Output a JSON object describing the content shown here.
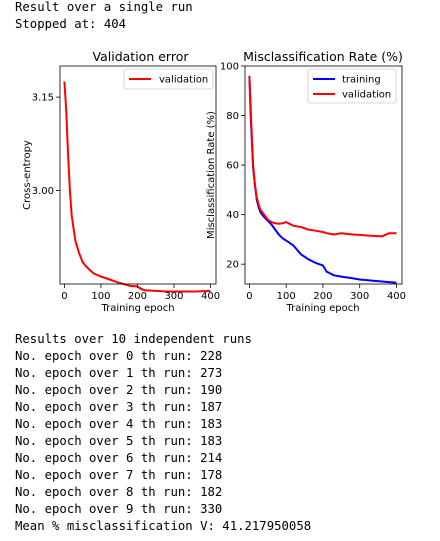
{
  "header": {
    "line1": "Result over a single run",
    "line2": "Stopped at: 404"
  },
  "chart_data": [
    {
      "type": "line",
      "title": "Validation error",
      "xlabel": "Training epoch",
      "ylabel": "Cross-entropy",
      "xlim": [
        -12,
        415
      ],
      "ylim": [
        2.85,
        3.2
      ],
      "xticks": [
        0,
        100,
        200,
        300,
        400
      ],
      "yticks": [
        3.0,
        3.15
      ],
      "ytick_labels": [
        "3.00",
        "3.15"
      ],
      "grid": false,
      "legend": "top-right",
      "series": [
        {
          "name": "validation",
          "color": "#ff0000",
          "x": [
            0,
            5,
            10,
            15,
            20,
            30,
            40,
            50,
            60,
            70,
            80,
            100,
            120,
            150,
            180,
            200,
            210,
            220,
            250,
            280,
            300,
            330,
            360,
            400
          ],
          "y": [
            3.175,
            3.13,
            3.06,
            3.0,
            2.96,
            2.92,
            2.9,
            2.885,
            2.878,
            2.872,
            2.867,
            2.862,
            2.858,
            2.852,
            2.847,
            2.846,
            2.842,
            2.84,
            2.839,
            2.838,
            2.838,
            2.838,
            2.838,
            2.839
          ]
        }
      ]
    },
    {
      "type": "line",
      "title": "Misclassification Rate (%)",
      "xlabel": "Training epoch",
      "ylabel": "Misclassification Rate (%)",
      "xlim": [
        -12,
        415
      ],
      "ylim": [
        12,
        100
      ],
      "xticks": [
        0,
        100,
        200,
        300,
        400
      ],
      "yticks": [
        20,
        40,
        60,
        80,
        100
      ],
      "grid": false,
      "legend": "top-right",
      "series": [
        {
          "name": "training",
          "color": "#0000ff",
          "x": [
            0,
            3,
            6,
            10,
            15,
            20,
            25,
            30,
            40,
            50,
            60,
            70,
            80,
            90,
            100,
            120,
            140,
            160,
            180,
            200,
            210,
            230,
            250,
            280,
            300,
            330,
            360,
            400
          ],
          "y": [
            96,
            82,
            72,
            59,
            52,
            46,
            43,
            41,
            39,
            37.5,
            36,
            34,
            32,
            30.5,
            29.5,
            27.5,
            24,
            22,
            20.5,
            19.5,
            17,
            15.5,
            15,
            14.3,
            13.8,
            13.4,
            13.0,
            12.5
          ]
        },
        {
          "name": "validation",
          "color": "#ff0000",
          "x": [
            0,
            3,
            6,
            10,
            15,
            20,
            25,
            30,
            40,
            50,
            60,
            70,
            80,
            90,
            100,
            120,
            140,
            160,
            180,
            200,
            210,
            230,
            250,
            280,
            300,
            330,
            360,
            380,
            400
          ],
          "y": [
            96,
            85,
            74,
            60,
            52,
            47,
            44,
            42,
            40,
            38,
            37,
            36.5,
            36.3,
            36.5,
            37,
            35.5,
            35,
            34,
            33.5,
            33,
            32.5,
            32,
            32.5,
            32,
            31.8,
            31.5,
            31.2,
            32.5,
            32.5
          ]
        }
      ]
    }
  ],
  "results": {
    "heading": "Results over 10 independent runs",
    "runs": [
      "No. epoch over 0 th run: 228",
      "No. epoch over 1 th run: 273",
      "No. epoch over 2 th run: 190",
      "No. epoch over 3 th run: 187",
      "No. epoch over 4 th run: 183",
      "No. epoch over 5 th run: 183",
      "No. epoch over 6 th run: 214",
      "No. epoch over 7 th run: 178",
      "No. epoch over 8 th run: 182",
      "No. epoch over 9 th run: 330"
    ],
    "mean": "Mean % misclassification V: 41.217950058"
  }
}
